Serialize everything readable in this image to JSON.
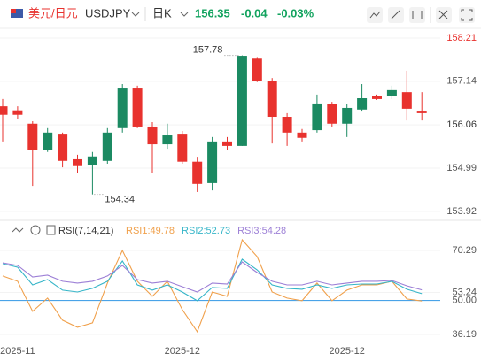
{
  "header": {
    "pair": "美元/日元",
    "symbol": "USDJPY",
    "period": "日K",
    "price": "156.35",
    "change": "-0.04",
    "change_pct": "-0.03%"
  },
  "chart_data": [
    {
      "type": "candlestick",
      "open": [
        156.52,
        156.42,
        156.09,
        155.43,
        155.82,
        155.21,
        155.06,
        155.17,
        155.98,
        156.96,
        156.02,
        155.58,
        155.82,
        155.15,
        154.62,
        155.65,
        155.54,
        157.7,
        157.14,
        156.26,
        155.87,
        155.93,
        156.57,
        156.09,
        156.44,
        156.77,
        156.77,
        156.87,
        156.39
      ],
      "high": [
        156.7,
        156.52,
        156.15,
        155.98,
        155.87,
        155.32,
        155.39,
        155.98,
        157.07,
        157.03,
        156.13,
        156.09,
        155.91,
        155.25,
        155.76,
        155.76,
        157.78,
        157.74,
        157.22,
        156.35,
        155.96,
        156.81,
        156.63,
        156.57,
        157.07,
        156.81,
        157.03,
        157.4,
        156.87
      ],
      "low": [
        155.65,
        156.2,
        154.55,
        155.39,
        155.01,
        154.88,
        154.34,
        155.1,
        155.87,
        155.98,
        154.88,
        155.47,
        155.1,
        154.4,
        154.44,
        155.43,
        155.54,
        157.12,
        155.6,
        155.54,
        155.65,
        155.87,
        156.02,
        155.76,
        156.39,
        156.68,
        156.7,
        156.17,
        156.17
      ],
      "close": [
        156.31,
        156.31,
        155.43,
        155.87,
        155.17,
        155.04,
        155.28,
        155.87,
        156.96,
        156.02,
        155.58,
        155.8,
        155.15,
        154.6,
        155.65,
        155.54,
        157.77,
        157.14,
        156.26,
        155.87,
        155.74,
        156.59,
        156.09,
        156.48,
        156.72,
        156.7,
        156.92,
        156.46,
        156.35
      ],
      "up_color": "#1b8a62",
      "down_color": "#e8322e",
      "ylim": [
        153.72,
        158.45
      ],
      "yticks": [
        158.21,
        157.14,
        156.06,
        154.99,
        153.92
      ],
      "grid": true,
      "high_label": "157.78",
      "low_label": "154.34"
    },
    {
      "type": "line",
      "title": "RSI(7,14,21)",
      "categories": [
        null,
        "2025-11",
        null,
        null,
        null,
        null,
        null,
        null,
        null,
        null,
        null,
        null,
        "2025-12",
        null,
        null,
        null,
        null,
        null,
        null,
        null,
        null,
        null,
        null,
        "2025-12",
        null,
        null,
        null,
        null,
        null
      ],
      "series": [
        {
          "name": "RSI1:49.78",
          "color": "#f0a04b",
          "values": [
            59.9,
            57.75,
            45.56,
            50.93,
            41.97,
            39.11,
            40.9,
            57.03,
            70.29,
            57.75,
            51.65,
            57.75,
            46.28,
            37.31,
            53.44,
            51.65,
            74.59,
            67.78,
            53.44,
            50.93,
            49.86,
            57.03,
            49.86,
            54.16,
            56.31,
            56.31,
            57.75,
            50.58,
            49.78
          ]
        },
        {
          "name": "RSI2:52.73",
          "color": "#35b5c8",
          "values": [
            64.91,
            63.48,
            56.31,
            58.46,
            54.16,
            53.44,
            54.88,
            57.75,
            65.99,
            56.31,
            54.16,
            56.31,
            53.44,
            49.86,
            55.24,
            54.88,
            66.71,
            62.4,
            56.31,
            54.88,
            54.52,
            56.31,
            54.88,
            56.31,
            56.67,
            56.67,
            57.75,
            54.52,
            52.73
          ]
        },
        {
          "name": "RSI3:54.28",
          "color": "#9c7fd6",
          "values": [
            65.27,
            64.2,
            59.54,
            60.25,
            57.75,
            57.03,
            57.75,
            59.9,
            64.2,
            58.46,
            57.03,
            57.75,
            55.59,
            53.44,
            57.03,
            56.67,
            65.63,
            61.33,
            57.75,
            56.31,
            56.31,
            57.75,
            56.31,
            57.03,
            57.75,
            57.75,
            58.1,
            55.95,
            54.28
          ]
        }
      ],
      "ylim": [
        30.1,
        75.67
      ],
      "yticks": [
        70.29,
        53.24,
        {
          "value": 50,
          "label": "50.00"
        },
        36.19
      ],
      "reference_line": 50,
      "reference_color": "#4aa3e8"
    }
  ]
}
